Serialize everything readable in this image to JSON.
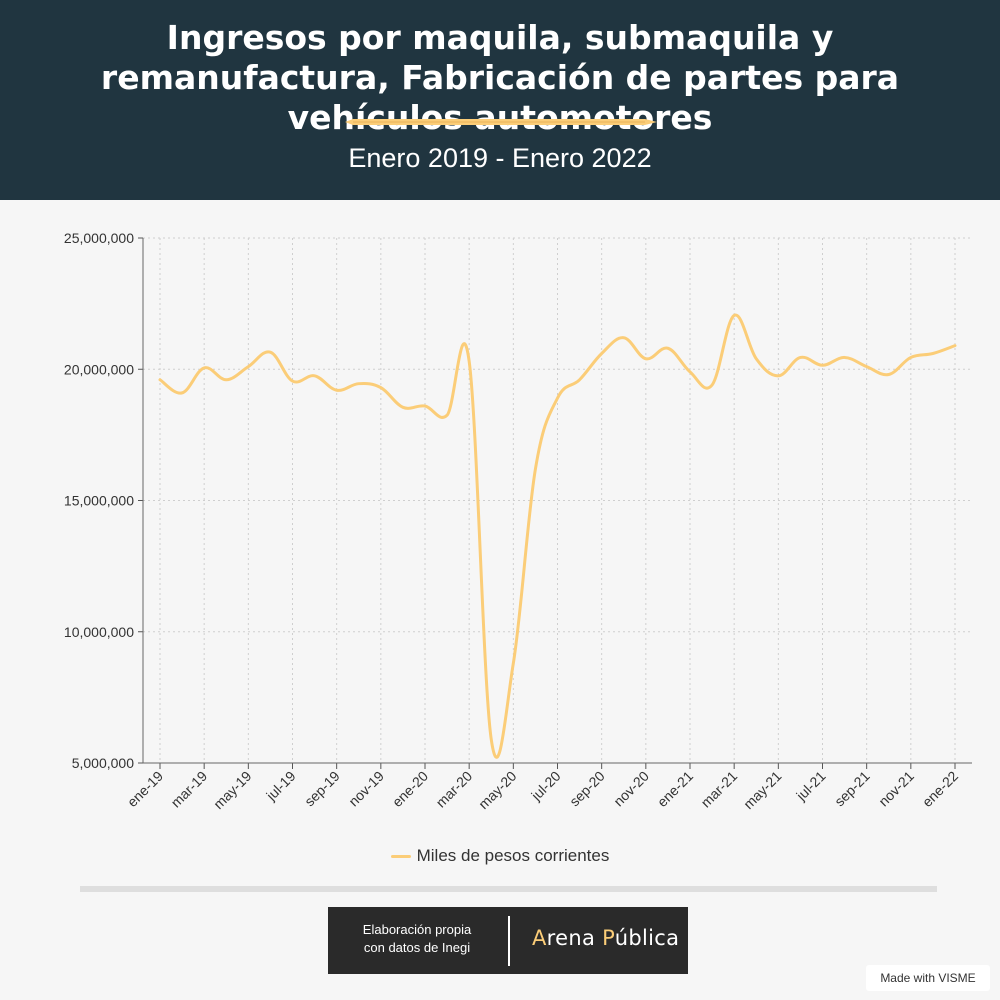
{
  "header": {
    "title": "Ingresos por maquila, submaquila y remanufactura, Fabricación de partes para vehículos automotores",
    "subtitle": "Enero 2019 - Enero 2022"
  },
  "legend": {
    "label": "Miles de pesos corrientes"
  },
  "credit": {
    "text_line1": "Elaboración propia",
    "text_line2": "con datos de Inegi",
    "logo_part1_accent": "A",
    "logo_part1_rest": "rena ",
    "logo_part2_accent": "P",
    "logo_part2_rest": "ública"
  },
  "badge": "Made with VISME",
  "colors": {
    "header_bg": "#203540",
    "line": "#fbcd78",
    "page_bg": "#f6f6f6"
  },
  "chart_data": {
    "type": "line",
    "title": "",
    "xlabel": "",
    "ylabel": "",
    "ylim": [
      5000000,
      25000000
    ],
    "yticks": [
      5000000,
      10000000,
      15000000,
      20000000,
      25000000
    ],
    "ytick_labels": [
      "5,000,000",
      "10,000,000",
      "15,000,000",
      "20,000,000",
      "25,000,000"
    ],
    "x": [
      "ene-19",
      "feb-19",
      "mar-19",
      "abr-19",
      "may-19",
      "jun-19",
      "jul-19",
      "ago-19",
      "sep-19",
      "oct-19",
      "nov-19",
      "dic-19",
      "ene-20",
      "feb-20",
      "mar-20",
      "abr-20",
      "may-20",
      "jun-20",
      "jul-20",
      "ago-20",
      "sep-20",
      "oct-20",
      "nov-20",
      "dic-20",
      "ene-21",
      "feb-21",
      "mar-21",
      "abr-21",
      "may-21",
      "jun-21",
      "jul-21",
      "ago-21",
      "sep-21",
      "oct-21",
      "nov-21",
      "dic-21",
      "ene-22"
    ],
    "xtick_labels": [
      "ene-19",
      "mar-19",
      "may-19",
      "jul-19",
      "sep-19",
      "nov-19",
      "ene-20",
      "mar-20",
      "may-20",
      "jul-20",
      "sep-20",
      "nov-20",
      "ene-21",
      "mar-21",
      "may-21",
      "jul-21",
      "sep-21",
      "nov-21",
      "ene-22"
    ],
    "grid": true,
    "legend_position": "bottom-center",
    "series": [
      {
        "name": "Miles de pesos corrientes",
        "color": "#fbcd78",
        "values": [
          19600000,
          19100000,
          20050000,
          19600000,
          20100000,
          20650000,
          19550000,
          19750000,
          19200000,
          19450000,
          19300000,
          18550000,
          18600000,
          18250000,
          20300000,
          5900000,
          8800000,
          16200000,
          18900000,
          19600000,
          20600000,
          21200000,
          20400000,
          20800000,
          19900000,
          19400000,
          22050000,
          20400000,
          19750000,
          20450000,
          20150000,
          20450000,
          20100000,
          19800000,
          20450000,
          20600000,
          20900000
        ]
      }
    ]
  }
}
